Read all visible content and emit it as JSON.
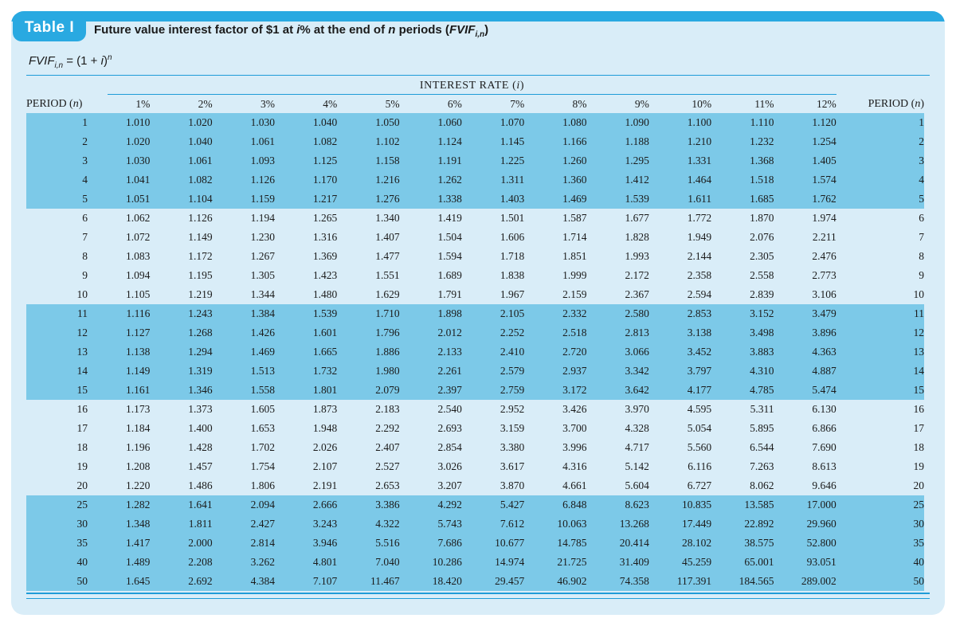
{
  "badge": {
    "label": "Table I"
  },
  "title": {
    "p1": "Future value interest factor of $1 at ",
    "i": "i",
    "p2": "% at the end of ",
    "n": "n",
    "p3": " periods (",
    "fvif": "FVIF",
    "sub": "i,n",
    "p4": ")"
  },
  "formula": {
    "fvif": "FVIF",
    "sub": "i,n",
    "eq": " = (1 + ",
    "i": "i",
    "close": ")",
    "exp": "n"
  },
  "table": {
    "interest_rate_header": {
      "p1": "INTEREST RATE (",
      "i": "i",
      "p2": ")"
    },
    "period_header": {
      "p1": "PERIOD (",
      "n": "n",
      "p2": ")"
    },
    "rate_headers": [
      "1%",
      "2%",
      "3%",
      "4%",
      "5%",
      "6%",
      "7%",
      "8%",
      "9%",
      "10%",
      "11%",
      "12%"
    ],
    "rows": [
      {
        "period": "1",
        "values": [
          "1.010",
          "1.020",
          "1.030",
          "1.040",
          "1.050",
          "1.060",
          "1.070",
          "1.080",
          "1.090",
          "1.100",
          "1.110",
          "1.120"
        ]
      },
      {
        "period": "2",
        "values": [
          "1.020",
          "1.040",
          "1.061",
          "1.082",
          "1.102",
          "1.124",
          "1.145",
          "1.166",
          "1.188",
          "1.210",
          "1.232",
          "1.254"
        ]
      },
      {
        "period": "3",
        "values": [
          "1.030",
          "1.061",
          "1.093",
          "1.125",
          "1.158",
          "1.191",
          "1.225",
          "1.260",
          "1.295",
          "1.331",
          "1.368",
          "1.405"
        ]
      },
      {
        "period": "4",
        "values": [
          "1.041",
          "1.082",
          "1.126",
          "1.170",
          "1.216",
          "1.262",
          "1.311",
          "1.360",
          "1.412",
          "1.464",
          "1.518",
          "1.574"
        ]
      },
      {
        "period": "5",
        "values": [
          "1.051",
          "1.104",
          "1.159",
          "1.217",
          "1.276",
          "1.338",
          "1.403",
          "1.469",
          "1.539",
          "1.611",
          "1.685",
          "1.762"
        ]
      },
      {
        "period": "6",
        "values": [
          "1.062",
          "1.126",
          "1.194",
          "1.265",
          "1.340",
          "1.419",
          "1.501",
          "1.587",
          "1.677",
          "1.772",
          "1.870",
          "1.974"
        ]
      },
      {
        "period": "7",
        "values": [
          "1.072",
          "1.149",
          "1.230",
          "1.316",
          "1.407",
          "1.504",
          "1.606",
          "1.714",
          "1.828",
          "1.949",
          "2.076",
          "2.211"
        ]
      },
      {
        "period": "8",
        "values": [
          "1.083",
          "1.172",
          "1.267",
          "1.369",
          "1.477",
          "1.594",
          "1.718",
          "1.851",
          "1.993",
          "2.144",
          "2.305",
          "2.476"
        ]
      },
      {
        "period": "9",
        "values": [
          "1.094",
          "1.195",
          "1.305",
          "1.423",
          "1.551",
          "1.689",
          "1.838",
          "1.999",
          "2.172",
          "2.358",
          "2.558",
          "2.773"
        ]
      },
      {
        "period": "10",
        "values": [
          "1.105",
          "1.219",
          "1.344",
          "1.480",
          "1.629",
          "1.791",
          "1.967",
          "2.159",
          "2.367",
          "2.594",
          "2.839",
          "3.106"
        ]
      },
      {
        "period": "11",
        "values": [
          "1.116",
          "1.243",
          "1.384",
          "1.539",
          "1.710",
          "1.898",
          "2.105",
          "2.332",
          "2.580",
          "2.853",
          "3.152",
          "3.479"
        ]
      },
      {
        "period": "12",
        "values": [
          "1.127",
          "1.268",
          "1.426",
          "1.601",
          "1.796",
          "2.012",
          "2.252",
          "2.518",
          "2.813",
          "3.138",
          "3.498",
          "3.896"
        ]
      },
      {
        "period": "13",
        "values": [
          "1.138",
          "1.294",
          "1.469",
          "1.665",
          "1.886",
          "2.133",
          "2.410",
          "2.720",
          "3.066",
          "3.452",
          "3.883",
          "4.363"
        ]
      },
      {
        "period": "14",
        "values": [
          "1.149",
          "1.319",
          "1.513",
          "1.732",
          "1.980",
          "2.261",
          "2.579",
          "2.937",
          "3.342",
          "3.797",
          "4.310",
          "4.887"
        ]
      },
      {
        "period": "15",
        "values": [
          "1.161",
          "1.346",
          "1.558",
          "1.801",
          "2.079",
          "2.397",
          "2.759",
          "3.172",
          "3.642",
          "4.177",
          "4.785",
          "5.474"
        ]
      },
      {
        "period": "16",
        "values": [
          "1.173",
          "1.373",
          "1.605",
          "1.873",
          "2.183",
          "2.540",
          "2.952",
          "3.426",
          "3.970",
          "4.595",
          "5.311",
          "6.130"
        ]
      },
      {
        "period": "17",
        "values": [
          "1.184",
          "1.400",
          "1.653",
          "1.948",
          "2.292",
          "2.693",
          "3.159",
          "3.700",
          "4.328",
          "5.054",
          "5.895",
          "6.866"
        ]
      },
      {
        "period": "18",
        "values": [
          "1.196",
          "1.428",
          "1.702",
          "2.026",
          "2.407",
          "2.854",
          "3.380",
          "3.996",
          "4.717",
          "5.560",
          "6.544",
          "7.690"
        ]
      },
      {
        "period": "19",
        "values": [
          "1.208",
          "1.457",
          "1.754",
          "2.107",
          "2.527",
          "3.026",
          "3.617",
          "4.316",
          "5.142",
          "6.116",
          "7.263",
          "8.613"
        ]
      },
      {
        "period": "20",
        "values": [
          "1.220",
          "1.486",
          "1.806",
          "2.191",
          "2.653",
          "3.207",
          "3.870",
          "4.661",
          "5.604",
          "6.727",
          "8.062",
          "9.646"
        ]
      },
      {
        "period": "25",
        "values": [
          "1.282",
          "1.641",
          "2.094",
          "2.666",
          "3.386",
          "4.292",
          "5.427",
          "6.848",
          "8.623",
          "10.835",
          "13.585",
          "17.000"
        ]
      },
      {
        "period": "30",
        "values": [
          "1.348",
          "1.811",
          "2.427",
          "3.243",
          "4.322",
          "5.743",
          "7.612",
          "10.063",
          "13.268",
          "17.449",
          "22.892",
          "29.960"
        ]
      },
      {
        "period": "35",
        "values": [
          "1.417",
          "2.000",
          "2.814",
          "3.946",
          "5.516",
          "7.686",
          "10.677",
          "14.785",
          "20.414",
          "28.102",
          "38.575",
          "52.800"
        ]
      },
      {
        "period": "40",
        "values": [
          "1.489",
          "2.208",
          "3.262",
          "4.801",
          "7.040",
          "10.286",
          "14.974",
          "21.725",
          "31.409",
          "45.259",
          "65.001",
          "93.051"
        ]
      },
      {
        "period": "50",
        "values": [
          "1.645",
          "2.692",
          "4.384",
          "7.107",
          "11.467",
          "18.420",
          "29.457",
          "46.902",
          "74.358",
          "117.391",
          "184.565",
          "289.002"
        ]
      }
    ]
  },
  "colors": {
    "accent_blue": "#29A9E1",
    "panel_bg": "#D9EDF8",
    "band_blue": "#7CC9E8",
    "rule_blue": "#1E9CD8",
    "text": "#1B1B1B",
    "badge_text": "#FFFFFF"
  }
}
